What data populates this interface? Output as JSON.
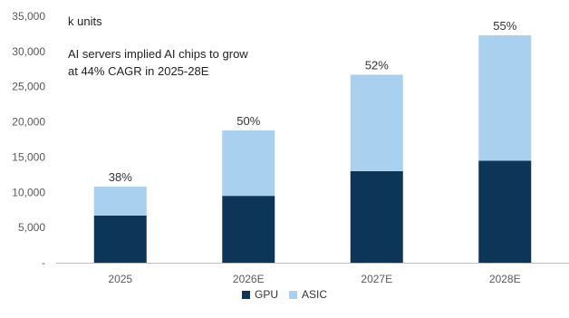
{
  "chart_data": {
    "type": "bar",
    "stacked": true,
    "categories": [
      "2025",
      "2026E",
      "2027E",
      "2028E"
    ],
    "series": [
      {
        "name": "GPU",
        "color": "#0d3557",
        "values": [
          6700,
          9500,
          13000,
          14500
        ]
      },
      {
        "name": "ASIC",
        "color": "#a9d0ee",
        "values": [
          4100,
          9300,
          13700,
          17800
        ]
      }
    ],
    "bar_labels": [
      "38%",
      "50%",
      "52%",
      "55%"
    ],
    "ylim": [
      0,
      35000
    ],
    "yticks": [
      0,
      5000,
      10000,
      15000,
      20000,
      25000,
      30000,
      35000
    ],
    "ytick_labels": [
      "-",
      "5,000",
      "10,000",
      "15,000",
      "20,000",
      "25,000",
      "30,000",
      "35,000"
    ],
    "unit_label": "k units",
    "annotation": [
      "AI servers implied AI chips to grow",
      "at 44% CAGR in 2025-28E"
    ],
    "grid": false,
    "legend_position": "bottom"
  }
}
